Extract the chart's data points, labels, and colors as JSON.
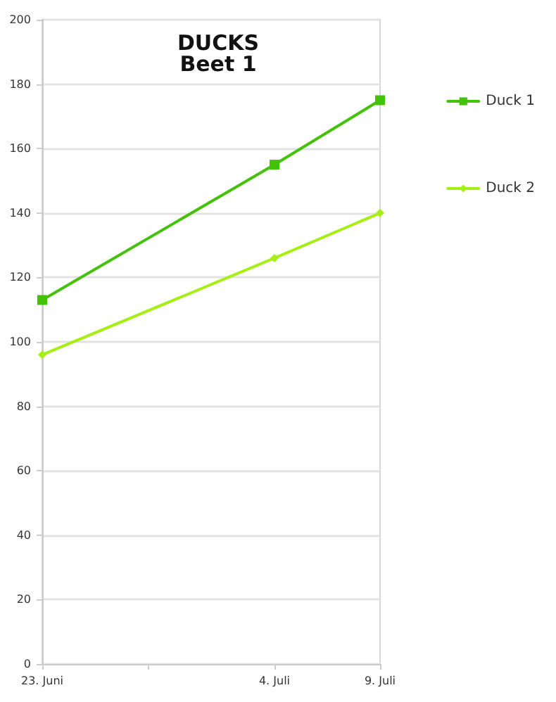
{
  "chart_data": {
    "type": "line",
    "title": "DUCKS",
    "subtitle": "Beet 1",
    "x": [
      "--06-23",
      "--07-04",
      "--07-09"
    ],
    "series": [
      {
        "name": "Duck 1",
        "color": "#44c20a",
        "marker": "square",
        "values": [
          113,
          155,
          175
        ]
      },
      {
        "name": "Duck 2",
        "color": "#a6ee14",
        "marker": "diamond",
        "values": [
          96,
          126,
          140
        ]
      }
    ],
    "xlim": [
      "--06-23",
      "--07-09"
    ],
    "xticks": [
      {
        "value": "--06-23",
        "label": "23. Juni"
      },
      {
        "value": "--06-28",
        "label": null
      },
      {
        "value": "--07-04",
        "label": "4. Juli"
      },
      {
        "value": "--07-09",
        "label": "9. Juli"
      }
    ],
    "ylim": [
      0,
      200
    ],
    "yticks": [
      0,
      20,
      40,
      60,
      80,
      100,
      120,
      140,
      160,
      180,
      200
    ],
    "grid": "y",
    "legend": "right",
    "line_style": "solid"
  }
}
